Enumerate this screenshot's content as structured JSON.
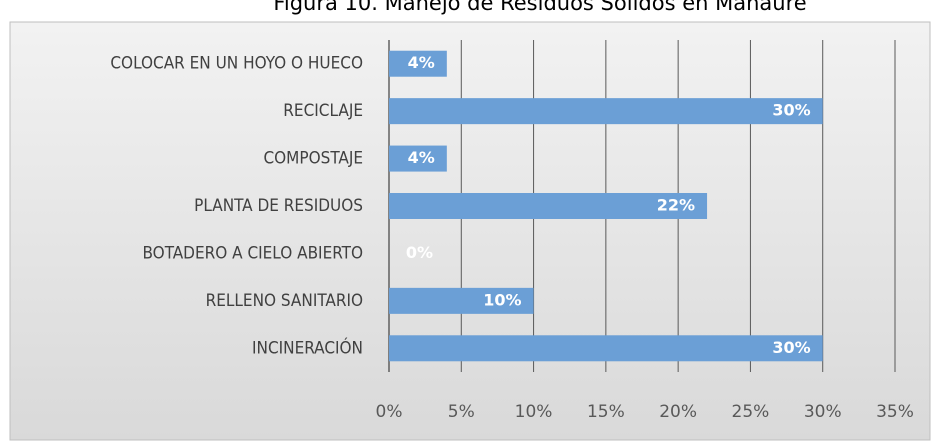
{
  "chart_data": {
    "type": "bar",
    "orientation": "horizontal",
    "title": "Figura 10. Manejo de Residuos Sólidos en Manaure",
    "categories": [
      "COLOCAR EN UN HOYO O HUECO",
      "RECICLAJE",
      "COMPOSTAJE",
      "PLANTA DE RESIDUOS",
      "BOTADERO A CIELO ABIERTO",
      "RELLENO SANITARIO",
      "INCINERACIÓN"
    ],
    "values": [
      4,
      30,
      4,
      22,
      0,
      10,
      30
    ],
    "value_labels": [
      "4%",
      "30%",
      "4%",
      "22%",
      "0%",
      "10%",
      "30%"
    ],
    "color": "#6b9fd6",
    "xlim": [
      0,
      35
    ],
    "xticks": [
      {
        "value": 0,
        "label": "0%"
      },
      {
        "value": 5,
        "label": "5%"
      },
      {
        "value": 10,
        "label": "10%"
      },
      {
        "value": 15,
        "label": "15%"
      },
      {
        "value": 20,
        "label": "20%"
      },
      {
        "value": 25,
        "label": "25%"
      },
      {
        "value": 30,
        "label": "30%"
      },
      {
        "value": 35,
        "label": "35%"
      }
    ],
    "grid": true
  }
}
